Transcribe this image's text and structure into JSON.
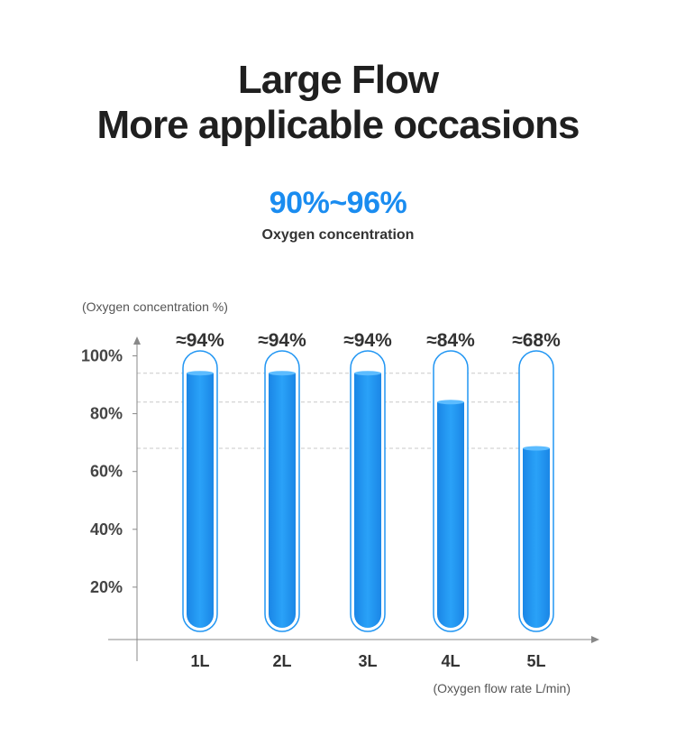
{
  "headline": {
    "line1": "Large Flow",
    "line2": "More applicable occasions"
  },
  "highlight": {
    "range": "90%~96%",
    "label": "Oxygen concentration",
    "color": "#1a8cf0"
  },
  "chart_data": {
    "type": "bar",
    "ylabel": "(Oxygen concentration %)",
    "xlabel": "(Oxygen flow rate L/min)",
    "categories": [
      "1L",
      "2L",
      "3L",
      "4L",
      "5L"
    ],
    "values": [
      94,
      94,
      94,
      84,
      68
    ],
    "value_labels": [
      "≈94%",
      "≈94%",
      "≈94%",
      "≈84%",
      "≈68%"
    ],
    "yticks": [
      "20%",
      "40%",
      "60%",
      "80%",
      "100%"
    ],
    "ytick_values": [
      20,
      40,
      60,
      80,
      100
    ],
    "ylim": [
      0,
      100
    ],
    "reference_lines": [
      94,
      84,
      68
    ],
    "bar_color": "#1f95f2",
    "grid": false
  }
}
